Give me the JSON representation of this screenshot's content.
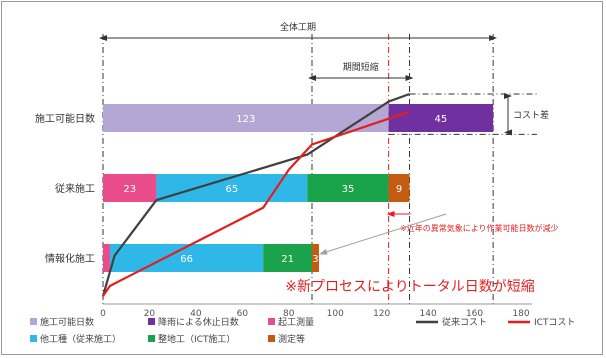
{
  "chart_data": {
    "type": "bar",
    "orientation": "horizontal",
    "stacked": true,
    "categories": [
      "施工可能日数",
      "従来施工",
      "情報化施工"
    ],
    "segment_types": [
      {
        "key": "possible",
        "name": "施工可能日数",
        "color": "#b4a7d6"
      },
      {
        "key": "rain",
        "name": "降雨による休止日数",
        "color": "#7030a0"
      },
      {
        "key": "survey",
        "name": "起工測量",
        "color": "#e84c8b"
      },
      {
        "key": "other",
        "name": "他工種（従来施工）",
        "color": "#2fb7e8"
      },
      {
        "key": "grading",
        "name": "整地工（ICT施工）",
        "color": "#1aa34a"
      },
      {
        "key": "measure",
        "name": "測定等",
        "color": "#c55a11"
      }
    ],
    "bars": [
      {
        "category": "施工可能日数",
        "segments": [
          {
            "type": "possible",
            "start": 0,
            "value": 123,
            "label": "123"
          },
          {
            "type": "rain",
            "start": 123,
            "value": 45,
            "label": "45"
          }
        ]
      },
      {
        "category": "従来施工",
        "segments": [
          {
            "type": "survey",
            "start": 0,
            "value": 23,
            "label": "23"
          },
          {
            "type": "other",
            "start": 23,
            "value": 65,
            "label": "65"
          },
          {
            "type": "grading",
            "start": 88,
            "value": 35,
            "label": "35"
          },
          {
            "type": "measure",
            "start": 123,
            "value": 9,
            "label": "9"
          }
        ]
      },
      {
        "category": "情報化施工",
        "segments": [
          {
            "type": "survey",
            "start": 0,
            "value": 3,
            "label": ""
          },
          {
            "type": "other",
            "start": 3,
            "value": 66,
            "label": "66"
          },
          {
            "type": "grading",
            "start": 69,
            "value": 21,
            "label": "21"
          },
          {
            "type": "measure",
            "start": 90,
            "value": 3,
            "label": "3"
          }
        ]
      }
    ],
    "lines": [
      {
        "name": "従来コスト",
        "color": "#404040",
        "points": [
          [
            0,
            0
          ],
          [
            5,
            0.8
          ],
          [
            23,
            1.9
          ],
          [
            88,
            2.8
          ],
          [
            123,
            3.85
          ],
          [
            132,
            4.0
          ]
        ]
      },
      {
        "name": "ICTコスト",
        "color": "#e41e1e",
        "points": [
          [
            0,
            0
          ],
          [
            3,
            0.2
          ],
          [
            69,
            1.75
          ],
          [
            80,
            2.5
          ],
          [
            90,
            3.0
          ],
          [
            132,
            3.65
          ]
        ]
      }
    ],
    "xticks": [
      0,
      20,
      40,
      60,
      80,
      100,
      120,
      140,
      160,
      180
    ],
    "xlim": [
      0,
      180
    ],
    "annotations": {
      "total_period": "全体工期",
      "shortened": "期間短縮",
      "cost_diff": "コスト差",
      "weather_note": "※近年の異常気象により作業可能日数が減少",
      "headline": "※新プロセスによりトータル日数が短縮"
    },
    "legend": {
      "position": "bottom"
    }
  }
}
